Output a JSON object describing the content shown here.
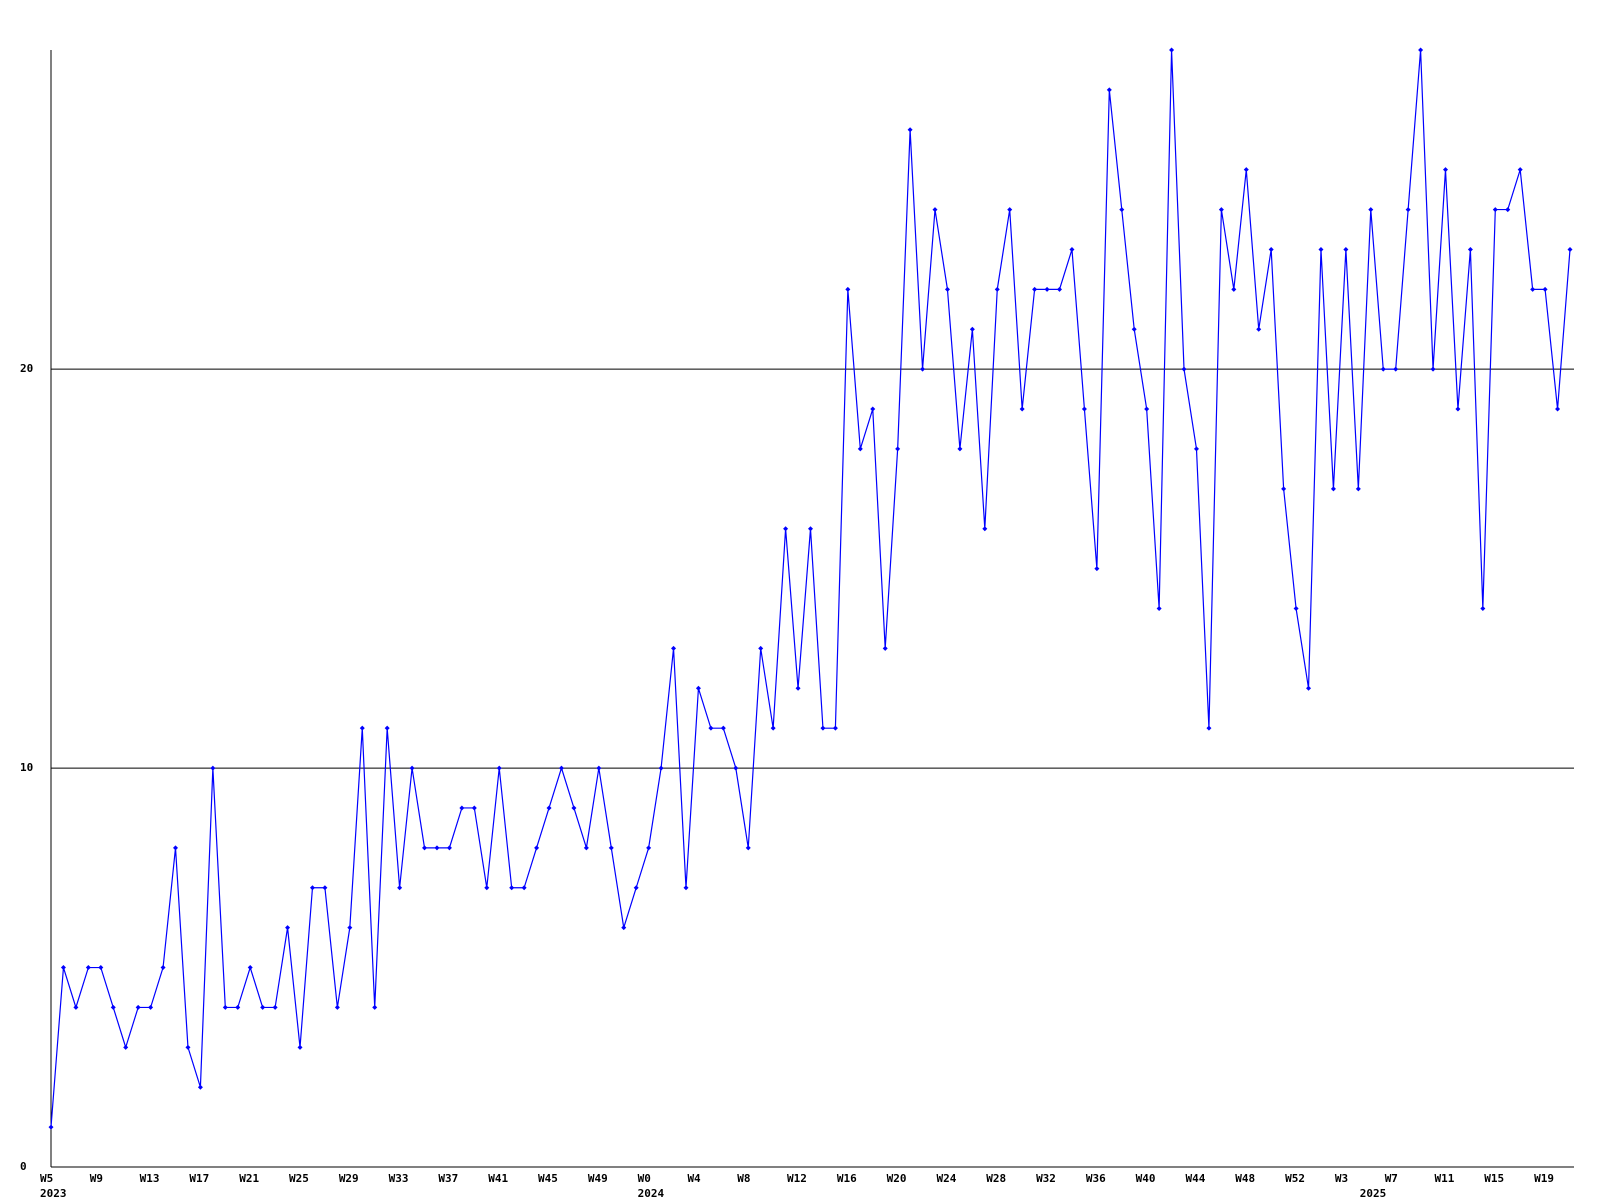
{
  "chart_data": {
    "type": "line",
    "categories": [
      "W5",
      null,
      null,
      null,
      "W9",
      null,
      null,
      null,
      "W13",
      null,
      null,
      null,
      "W17",
      null,
      null,
      null,
      "W21",
      null,
      null,
      null,
      "W25",
      null,
      null,
      null,
      "W29",
      null,
      null,
      null,
      "W33",
      null,
      null,
      null,
      "W37",
      null,
      null,
      null,
      "W41",
      null,
      null,
      null,
      "W45",
      null,
      null,
      null,
      "W49",
      null,
      null,
      null,
      "W0",
      null,
      null,
      null,
      "W4",
      null,
      null,
      null,
      "W8",
      null,
      null,
      null,
      "W12",
      null,
      null,
      null,
      "W16",
      null,
      null,
      null,
      "W20",
      null,
      null,
      null,
      "W24",
      null,
      null,
      null,
      "W28",
      null,
      null,
      null,
      "W32",
      null,
      null,
      null,
      "W36",
      null,
      null,
      null,
      "W40",
      null,
      null,
      null,
      "W44",
      null,
      null,
      null,
      "W48",
      null,
      null,
      null,
      "W52",
      null,
      null,
      null,
      "W3",
      null,
      null,
      null,
      "W7",
      null,
      null,
      null,
      "W11",
      null,
      null,
      null,
      "W15",
      null,
      null,
      null,
      "W19",
      null,
      null
    ],
    "category_years": [
      "2023",
      null,
      null,
      null,
      null,
      null,
      null,
      null,
      null,
      null,
      null,
      null,
      null,
      null,
      null,
      null,
      null,
      null,
      null,
      null,
      null,
      null,
      null,
      null,
      null,
      null,
      null,
      null,
      null,
      null,
      null,
      null,
      null,
      null,
      null,
      null,
      null,
      null,
      null,
      null,
      null,
      null,
      null,
      null,
      null,
      null,
      null,
      null,
      "2024",
      null,
      null,
      null,
      null,
      null,
      null,
      null,
      null,
      null,
      null,
      null,
      null,
      null,
      null,
      null,
      null,
      null,
      null,
      null,
      null,
      null,
      null,
      null,
      null,
      null,
      null,
      null,
      null,
      null,
      null,
      null,
      null,
      null,
      null,
      null,
      null,
      null,
      null,
      null,
      null,
      null,
      null,
      null,
      null,
      null,
      null,
      null,
      null,
      null,
      null,
      null,
      null,
      null,
      null,
      null,
      null,
      null,
      "2025",
      null,
      null,
      null,
      null,
      null,
      null,
      null,
      null,
      null,
      null,
      null,
      null,
      null,
      null,
      null,
      null,
      null,
      null
    ],
    "series": [
      {
        "color": "#0000ff",
        "values": [
          1,
          5,
          4,
          5,
          5,
          4,
          3,
          4,
          4,
          5,
          8,
          3,
          2,
          10,
          4,
          4,
          5,
          4,
          4,
          6,
          3,
          7,
          7,
          4,
          6,
          11,
          4,
          11,
          7,
          10,
          8,
          8,
          8,
          9,
          9,
          7,
          10,
          7,
          7,
          8,
          9,
          10,
          9,
          8,
          10,
          8,
          6,
          7,
          8,
          10,
          13,
          7,
          12,
          11,
          11,
          10,
          8,
          13,
          11,
          16,
          12,
          16,
          11,
          11,
          22,
          18,
          19,
          13,
          18,
          26,
          20,
          24,
          22,
          18,
          21,
          16,
          22,
          24,
          19,
          22,
          22,
          22,
          23,
          19,
          15,
          27,
          24,
          21,
          19,
          14,
          28,
          20,
          18,
          11,
          24,
          22,
          25,
          21,
          23,
          17,
          14,
          12,
          23,
          17,
          23,
          17,
          24,
          20,
          20,
          24,
          28,
          20,
          25,
          19,
          23,
          14,
          24,
          24,
          25,
          22,
          22,
          19,
          23
        ]
      }
    ],
    "ylim": [
      0,
      28
    ],
    "yticks": [
      0,
      10,
      20
    ],
    "grid": true
  }
}
